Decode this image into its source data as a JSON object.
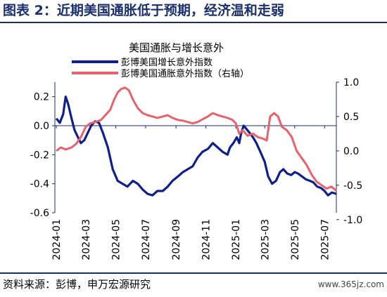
{
  "header": {
    "title": "图表 2：近期美国通胀低于预期，经济温和走弱"
  },
  "footer": {
    "source": "资料来源：彭博，申万宏源研究",
    "watermark": "www.365jz.com"
  },
  "colors": {
    "series_growth": "#0f1f8c",
    "series_inflation": "#e8616b",
    "axis": "#1a2f6e",
    "header": "#1a2f6e"
  },
  "chart_data": {
    "type": "line",
    "title": "美国通胀与增长意外",
    "x_range": [
      "2023-12-29",
      "2025-07-25"
    ],
    "x_ticks": [
      "2024-01",
      "2024-03",
      "2024-05",
      "2024-07",
      "2024-09",
      "2024-11",
      "2025-01",
      "2025-03",
      "2025-05",
      "2025-07"
    ],
    "y_left": {
      "range": [
        -0.6,
        0.3
      ],
      "ticks": [
        "0.2",
        "0.0",
        "-0.2",
        "-0.4",
        "-0.6"
      ]
    },
    "y_right": {
      "range": [
        -0.9,
        1.0
      ],
      "ticks": [
        "1.0",
        "0.5",
        "0.0",
        "-0.5",
        "-1.0"
      ]
    },
    "series": [
      {
        "name": "彭博美国增长意外指数",
        "axis": "left",
        "color": "#0f1f8c",
        "x": [
          "2024-01-01",
          "2024-01-08",
          "2024-01-15",
          "2024-01-20",
          "2024-01-25",
          "2024-02-01",
          "2024-02-07",
          "2024-02-14",
          "2024-02-20",
          "2024-02-27",
          "2024-03-05",
          "2024-03-12",
          "2024-03-20",
          "2024-03-28",
          "2024-04-05",
          "2024-04-15",
          "2024-04-25",
          "2024-05-05",
          "2024-05-15",
          "2024-05-25",
          "2024-06-05",
          "2024-06-15",
          "2024-06-25",
          "2024-07-05",
          "2024-07-15",
          "2024-07-25",
          "2024-08-05",
          "2024-08-15",
          "2024-08-25",
          "2024-09-05",
          "2024-09-15",
          "2024-09-25",
          "2024-10-05",
          "2024-10-15",
          "2024-10-25",
          "2024-11-05",
          "2024-11-15",
          "2024-11-25",
          "2024-12-05",
          "2024-12-15",
          "2024-12-20",
          "2024-12-27",
          "2025-01-03",
          "2025-01-08",
          "2025-01-12",
          "2025-01-17",
          "2025-01-22",
          "2025-01-29",
          "2025-02-05",
          "2025-02-12",
          "2025-02-20",
          "2025-03-01",
          "2025-03-08",
          "2025-03-16",
          "2025-03-24",
          "2025-04-01",
          "2025-04-08",
          "2025-04-16",
          "2025-04-24",
          "2025-05-01",
          "2025-05-08",
          "2025-05-16",
          "2025-05-24",
          "2025-06-01",
          "2025-06-08",
          "2025-06-16",
          "2025-06-24",
          "2025-07-01",
          "2025-07-08",
          "2025-07-16",
          "2025-07-25"
        ],
        "y": [
          0.05,
          0.02,
          0.08,
          0.2,
          0.15,
          0.05,
          -0.03,
          -0.08,
          -0.12,
          -0.1,
          -0.05,
          0.0,
          0.03,
          0.02,
          -0.05,
          -0.15,
          -0.3,
          -0.38,
          -0.4,
          -0.42,
          -0.38,
          -0.4,
          -0.44,
          -0.47,
          -0.48,
          -0.45,
          -0.45,
          -0.42,
          -0.38,
          -0.35,
          -0.32,
          -0.3,
          -0.28,
          -0.22,
          -0.18,
          -0.16,
          -0.12,
          -0.15,
          -0.18,
          -0.2,
          -0.15,
          -0.12,
          -0.08,
          -0.12,
          -0.05,
          0.0,
          -0.02,
          -0.05,
          -0.08,
          -0.12,
          -0.18,
          -0.25,
          -0.35,
          -0.4,
          -0.38,
          -0.32,
          -0.3,
          -0.33,
          -0.34,
          -0.32,
          -0.33,
          -0.35,
          -0.37,
          -0.38,
          -0.39,
          -0.42,
          -0.43,
          -0.45,
          -0.48,
          -0.46,
          -0.47
        ]
      },
      {
        "name": "彭博美国通胀意外指数（右轴）",
        "axis": "right",
        "color": "#e8616b",
        "x": [
          "2024-01-01",
          "2024-01-10",
          "2024-01-20",
          "2024-02-01",
          "2024-02-10",
          "2024-02-20",
          "2024-03-01",
          "2024-03-10",
          "2024-03-20",
          "2024-04-01",
          "2024-04-10",
          "2024-04-20",
          "2024-04-28",
          "2024-05-05",
          "2024-05-12",
          "2024-05-20",
          "2024-05-28",
          "2024-06-05",
          "2024-06-15",
          "2024-06-25",
          "2024-07-05",
          "2024-07-15",
          "2024-07-25",
          "2024-08-05",
          "2024-08-15",
          "2024-08-25",
          "2024-09-05",
          "2024-09-15",
          "2024-09-25",
          "2024-10-05",
          "2024-10-15",
          "2024-10-25",
          "2024-11-05",
          "2024-11-15",
          "2024-11-25",
          "2024-12-05",
          "2024-12-15",
          "2024-12-25",
          "2025-01-01",
          "2025-01-08",
          "2025-01-15",
          "2025-01-25",
          "2025-02-05",
          "2025-02-15",
          "2025-02-25",
          "2025-03-05",
          "2025-03-12",
          "2025-03-20",
          "2025-03-28",
          "2025-04-05",
          "2025-04-15",
          "2025-04-25",
          "2025-05-05",
          "2025-05-15",
          "2025-05-25",
          "2025-06-05",
          "2025-06-15",
          "2025-06-25",
          "2025-07-05",
          "2025-07-15",
          "2025-07-25"
        ],
        "y": [
          0.0,
          0.05,
          0.02,
          0.05,
          0.1,
          0.2,
          0.35,
          0.4,
          0.42,
          0.45,
          0.52,
          0.6,
          0.75,
          0.85,
          0.9,
          0.92,
          0.88,
          0.75,
          0.62,
          0.55,
          0.52,
          0.5,
          0.48,
          0.5,
          0.52,
          0.48,
          0.45,
          0.44,
          0.42,
          0.4,
          0.42,
          0.46,
          0.5,
          0.55,
          0.52,
          0.5,
          0.48,
          0.45,
          0.4,
          0.25,
          0.3,
          0.22,
          0.25,
          0.2,
          0.18,
          0.15,
          0.5,
          0.55,
          0.5,
          0.35,
          0.3,
          0.2,
          0.0,
          -0.1,
          -0.2,
          -0.35,
          -0.45,
          -0.5,
          -0.55,
          -0.52,
          -0.58
        ]
      }
    ]
  }
}
